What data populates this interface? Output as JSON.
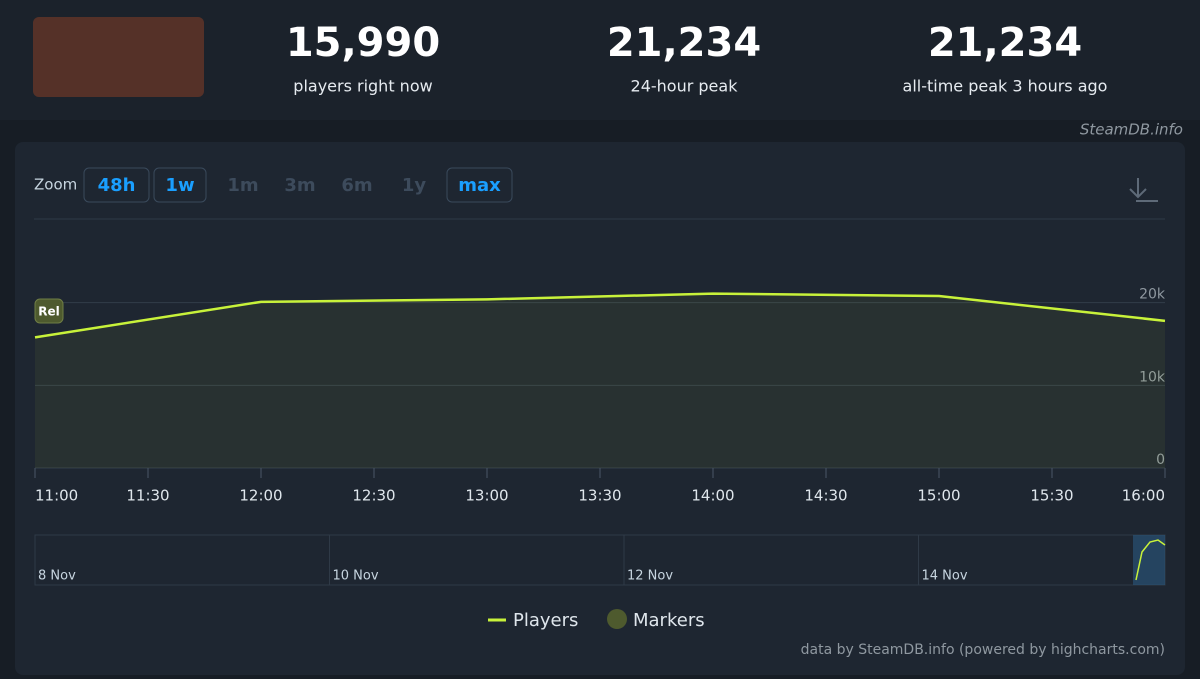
{
  "stats": [
    {
      "value": "15,990",
      "label": "players right now"
    },
    {
      "value": "21,234",
      "label": "24-hour peak"
    },
    {
      "value": "21,234",
      "label": "all-time peak 3 hours ago"
    }
  ],
  "credit_top": "SteamDB.info",
  "zoom": {
    "label": "Zoom",
    "buttons": [
      {
        "text": "48h",
        "enabled": true
      },
      {
        "text": "1w",
        "enabled": true
      },
      {
        "text": "1m",
        "enabled": false
      },
      {
        "text": "3m",
        "enabled": false
      },
      {
        "text": "6m",
        "enabled": false
      },
      {
        "text": "1y",
        "enabled": false
      },
      {
        "text": "max",
        "enabled": true
      }
    ]
  },
  "chart_data": {
    "type": "line",
    "xticks": [
      "11:00",
      "11:30",
      "12:00",
      "12:30",
      "13:00",
      "13:30",
      "14:00",
      "14:30",
      "15:00",
      "15:30",
      "16:00"
    ],
    "series": [
      {
        "name": "Players",
        "color": "#c8f23a",
        "x": [
          "11:00",
          "12:00",
          "13:00",
          "14:00",
          "15:00",
          "16:00"
        ],
        "values": [
          15800,
          20100,
          20400,
          21100,
          20800,
          17800
        ]
      }
    ],
    "markers": {
      "name": "Markers",
      "color": "#4e5a2e",
      "items": [
        {
          "x": "11:00",
          "label": "Rel"
        }
      ]
    },
    "ylim": [
      0,
      30000
    ],
    "yticks": [
      0,
      {
        "value": 10000,
        "label": "10k"
      },
      {
        "value": 20000,
        "label": "20k"
      }
    ],
    "grid": true
  },
  "navigator": {
    "labels": [
      "8 Nov",
      "10 Nov",
      "12 Nov",
      "14 Nov"
    ]
  },
  "credit_bottom": "data by SteamDB.info (powered by highcharts.com)"
}
